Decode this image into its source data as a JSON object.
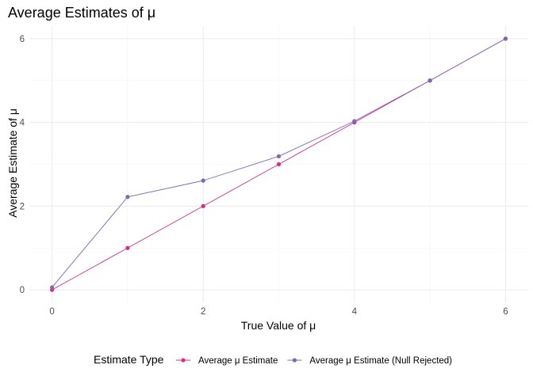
{
  "chart_data": {
    "type": "line",
    "title": "Average Estimates of μ",
    "xlabel": "True Value of μ",
    "ylabel": "Average Estimate of μ",
    "xlim": [
      -0.3,
      6.3
    ],
    "ylim": [
      -0.3,
      6.3
    ],
    "x_ticks": [
      0,
      2,
      4,
      6
    ],
    "y_ticks": [
      0,
      2,
      4,
      6
    ],
    "grid": true,
    "legend_position": "bottom",
    "legend_title": "Estimate Type",
    "series": [
      {
        "name": "Average μ Estimate",
        "color": "#d62c8a",
        "x": [
          0,
          1,
          2,
          3,
          4,
          5,
          6
        ],
        "y": [
          0.0,
          1.0,
          2.0,
          3.0,
          4.0,
          5.0,
          6.0
        ]
      },
      {
        "name": "Average μ Estimate (Null Rejected)",
        "color": "#7b68b6",
        "x": [
          0,
          1,
          2,
          3,
          4,
          5,
          6
        ],
        "y": [
          0.06,
          2.22,
          2.61,
          3.19,
          4.03,
          5.0,
          6.0
        ]
      }
    ]
  }
}
